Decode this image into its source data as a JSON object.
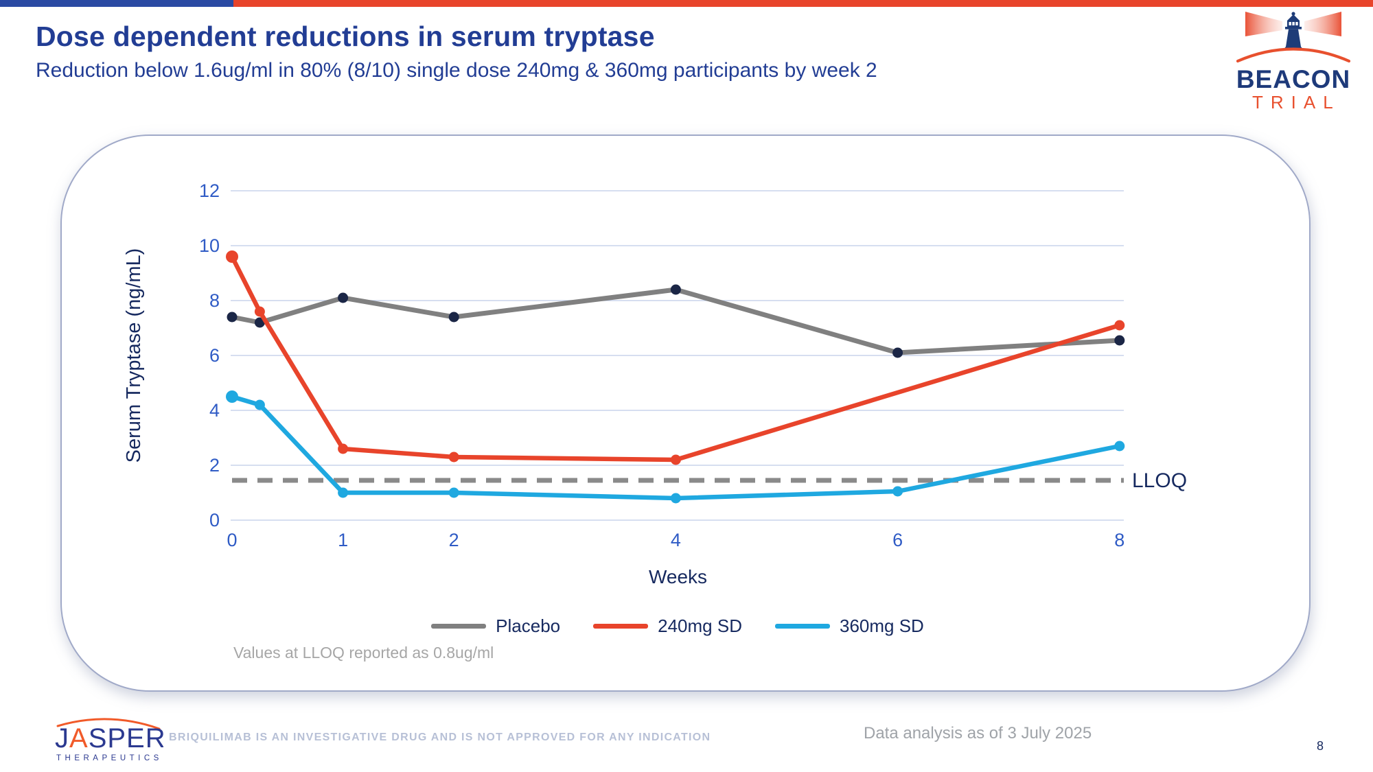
{
  "slide": {
    "title": "Dose dependent reductions in serum tryptase",
    "subtitle": "Reduction below 1.6ug/ml in 80% (8/10) single dose 240mg & 360mg participants by week 2",
    "page_number": "8"
  },
  "branding": {
    "beacon": {
      "wordmark": "BEACON",
      "sub_wordmark": "TRIAL"
    },
    "jasper": {
      "wordmark_j": "J",
      "wordmark_a": "A",
      "wordmark_rest": "SPER",
      "sub_wordmark": "THERAPEUTICS"
    }
  },
  "footer": {
    "disclaimer": "BRIQUILIMAB IS AN INVESTIGATIVE DRUG AND IS NOT APPROVED FOR ANY INDICATION",
    "data_note": "Data analysis as of 3 July 2025"
  },
  "chart_data": {
    "type": "line",
    "xlabel": "Weeks",
    "ylabel": "Serum Tryptase (ng/mL)",
    "xlim": [
      0,
      8
    ],
    "ylim": [
      0,
      12
    ],
    "x_ticks": [
      0,
      1,
      2,
      4,
      6,
      8
    ],
    "y_ticks": [
      0,
      2,
      4,
      6,
      8,
      10,
      12
    ],
    "grid": "horizontal",
    "legend_position": "bottom",
    "series": [
      {
        "name": "Placebo",
        "color": "#808080",
        "marker_color": "#1B2646",
        "x": [
          0,
          0.25,
          1,
          2,
          4,
          6,
          8
        ],
        "values": [
          7.4,
          7.2,
          8.1,
          7.4,
          8.4,
          6.1,
          6.55
        ]
      },
      {
        "name": "240mg SD",
        "color": "#E8442B",
        "marker_color": "#E8442B",
        "x": [
          0,
          0.25,
          1,
          2,
          4,
          8
        ],
        "values": [
          9.6,
          7.6,
          2.6,
          2.3,
          2.2,
          7.1
        ]
      },
      {
        "name": "360mg SD",
        "color": "#1FA8E0",
        "marker_color": "#1FA8E0",
        "x": [
          0,
          0.25,
          1,
          2,
          4,
          6,
          8
        ],
        "values": [
          4.5,
          4.2,
          1.0,
          1.0,
          0.8,
          1.05,
          2.7
        ]
      }
    ],
    "reference_line": {
      "label": "LLOQ",
      "value": 1.45,
      "color": "#8A8A8A",
      "style": "dashed"
    },
    "footnote": "Values at LLOQ reported as 0.8ug/ml",
    "tick_label_color": "#2F5BC5",
    "axis_title_color": "#16295F",
    "gridline_color": "#C8D4EC"
  }
}
